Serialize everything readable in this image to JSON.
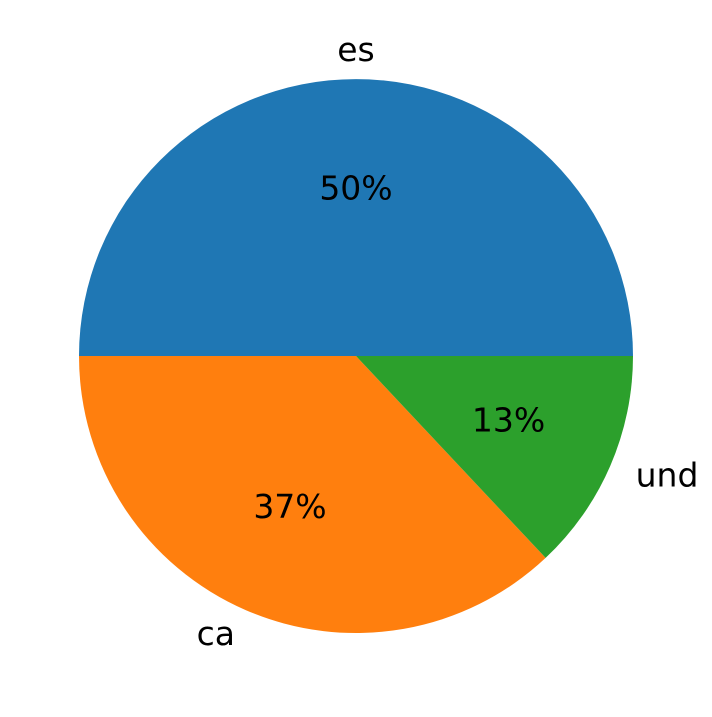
{
  "chart_data": {
    "type": "pie",
    "categories": [
      "es",
      "ca",
      "und"
    ],
    "values": [
      50,
      37,
      13
    ],
    "value_labels": [
      "50%",
      "37%",
      "13%"
    ],
    "colors": [
      "#1f77b4",
      "#ff7f0e",
      "#2ca02c"
    ]
  }
}
